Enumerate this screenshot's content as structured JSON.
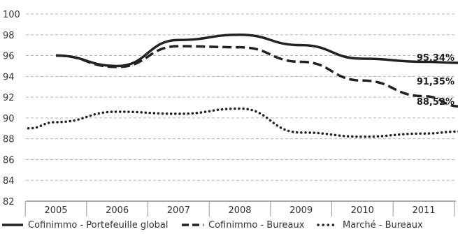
{
  "chart_data": {
    "type": "line",
    "title": "",
    "xlabel": "",
    "ylabel": "",
    "categories": [
      "2005",
      "2006",
      "2007",
      "2008",
      "2009",
      "2010",
      "2011"
    ],
    "ylim": [
      82,
      100
    ],
    "yticks": [
      82,
      84,
      86,
      88,
      90,
      92,
      94,
      96,
      98,
      100
    ],
    "grid": "horizontal dashed",
    "legend_position": "bottom",
    "series": [
      {
        "name": "Cofinimmo - Portefeuille global",
        "style": "solid",
        "color": "#222222",
        "x": [
          2005.0,
          2006.0,
          2007.0,
          2008.0,
          2009.0,
          2010.0,
          2011.0,
          2011.6
        ],
        "values": [
          96.0,
          95.0,
          97.5,
          98.0,
          97.0,
          95.7,
          95.4,
          95.3
        ]
      },
      {
        "name": "Cofinimmo - Bureaux",
        "style": "dashed",
        "color": "#222222",
        "x": [
          2005.0,
          2006.0,
          2007.0,
          2008.0,
          2009.0,
          2010.0,
          2011.0,
          2011.6
        ],
        "values": [
          96.0,
          94.9,
          96.9,
          96.8,
          95.4,
          93.6,
          92.1,
          91.1
        ]
      },
      {
        "name": "Marché - Bureaux",
        "style": "dotted",
        "color": "#222222",
        "x": [
          2004.55,
          2005.0,
          2006.0,
          2007.0,
          2008.0,
          2009.0,
          2010.0,
          2011.0,
          2011.6
        ],
        "values": [
          89.0,
          89.6,
          90.6,
          90.4,
          90.9,
          88.6,
          88.2,
          88.5,
          88.7
        ]
      }
    ],
    "annotations": [
      "95,34%",
      "91,35%",
      "88,52%"
    ]
  }
}
